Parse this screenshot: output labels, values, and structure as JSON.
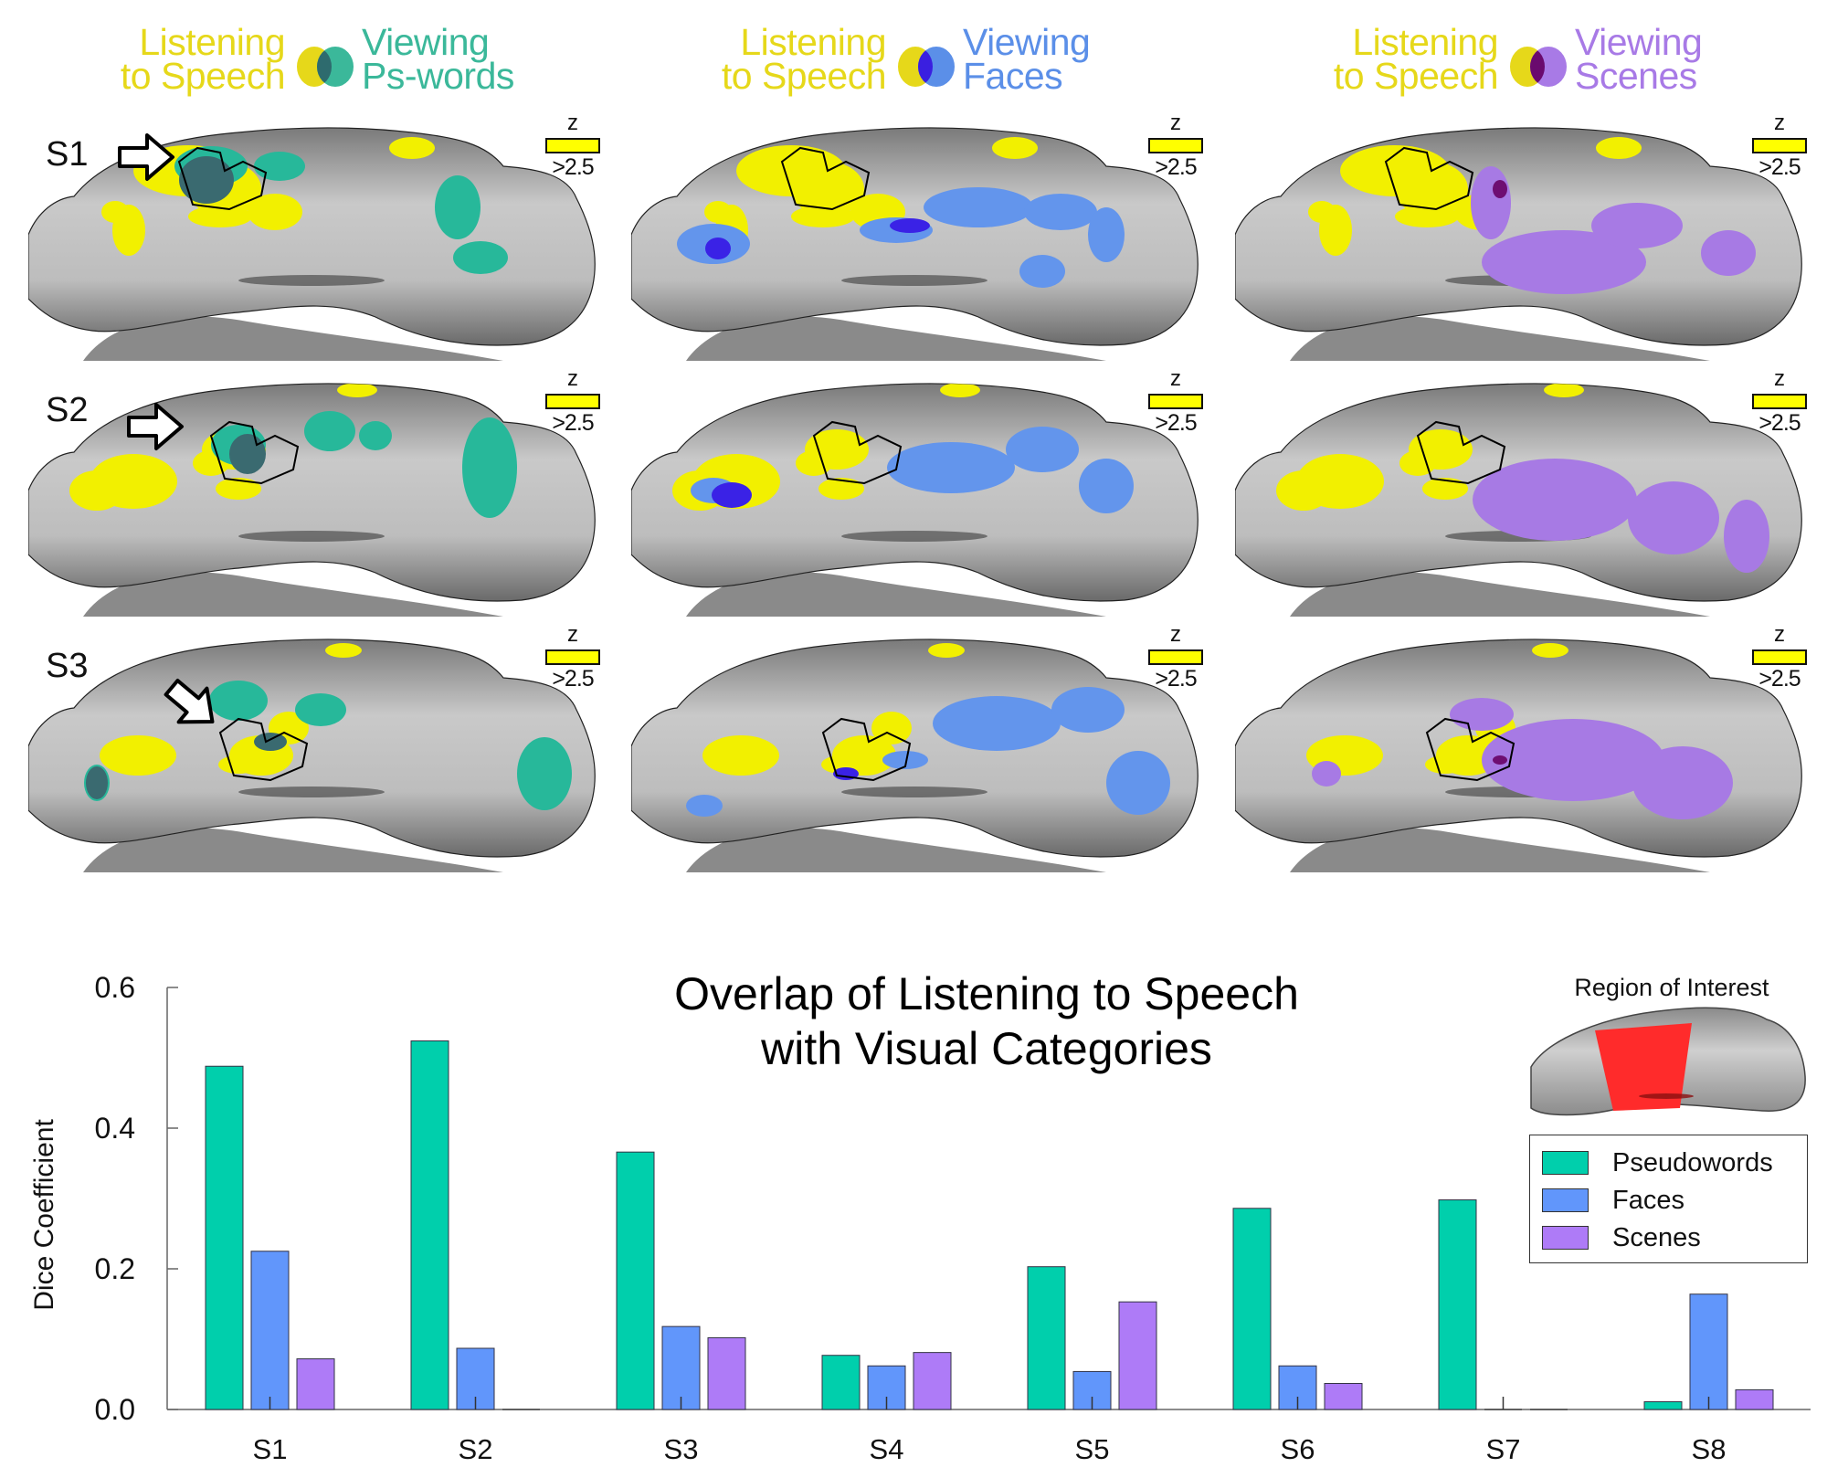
{
  "figure": {
    "columns": [
      {
        "left_line1": "Listening",
        "left_line2": "to Speech",
        "right_line1": "Viewing",
        "right_line2": "Ps-words",
        "left_color": "#e6d81a",
        "right_color": "#3bb89a",
        "overlap_color": "#2e6b6e",
        "category": "Pseudowords"
      },
      {
        "left_line1": "Listening",
        "left_line2": "to Speech",
        "right_line1": "Viewing",
        "right_line2": "Faces",
        "left_color": "#e6d81a",
        "right_color": "#5b8fe8",
        "overlap_color": "#3a1fe0",
        "category": "Faces"
      },
      {
        "left_line1": "Listening",
        "left_line2": "to Speech",
        "right_line1": "Viewing",
        "right_line2": "Scenes",
        "left_color": "#e6d81a",
        "right_color": "#a87ae6",
        "overlap_color": "#6a0a6e",
        "category": "Scenes"
      }
    ],
    "rows": [
      {
        "label": "S1"
      },
      {
        "label": "S2"
      },
      {
        "label": "S3"
      }
    ],
    "z_legend": {
      "label": "z",
      "threshold": ">2.5",
      "color": "#ffff00"
    },
    "activation_colors": {
      "speech": "#f2f000",
      "pseudowords": "#27b89a",
      "pseudowords_overlap": "#3a6a70",
      "faces": "#6395ec",
      "faces_overlap": "#3a22e6",
      "scenes": "#a77ae4",
      "scenes_overlap": "#6e0e72"
    }
  },
  "roi": {
    "title": "Region of Interest",
    "color": "#ff2b2b"
  },
  "chart_data": {
    "type": "bar",
    "title_line1": "Overlap of Listening to Speech",
    "title_line2": "with Visual Categories",
    "xlabel": "",
    "ylabel": "Dice Coefficient",
    "ylim": [
      0,
      0.6
    ],
    "yticks": [
      "0.0",
      "0.2",
      "0.4",
      "0.6"
    ],
    "ytick_values": [
      0.0,
      0.2,
      0.4,
      0.6
    ],
    "categories": [
      "S1",
      "S2",
      "S3",
      "S4",
      "S5",
      "S6",
      "S7",
      "S8"
    ],
    "series": [
      {
        "name": "Pseudowords",
        "color": "#00cfac",
        "values": [
          0.488,
          0.524,
          0.366,
          0.077,
          0.203,
          0.286,
          0.298,
          0.011
        ]
      },
      {
        "name": "Faces",
        "color": "#6196fb",
        "values": [
          0.225,
          0.087,
          0.118,
          0.062,
          0.054,
          0.062,
          0.0,
          0.164
        ]
      },
      {
        "name": "Scenes",
        "color": "#ae7bf7",
        "values": [
          0.072,
          0.0,
          0.102,
          0.081,
          0.153,
          0.037,
          0.0,
          0.028
        ]
      }
    ],
    "legend_position": "top-right",
    "grid": false
  }
}
